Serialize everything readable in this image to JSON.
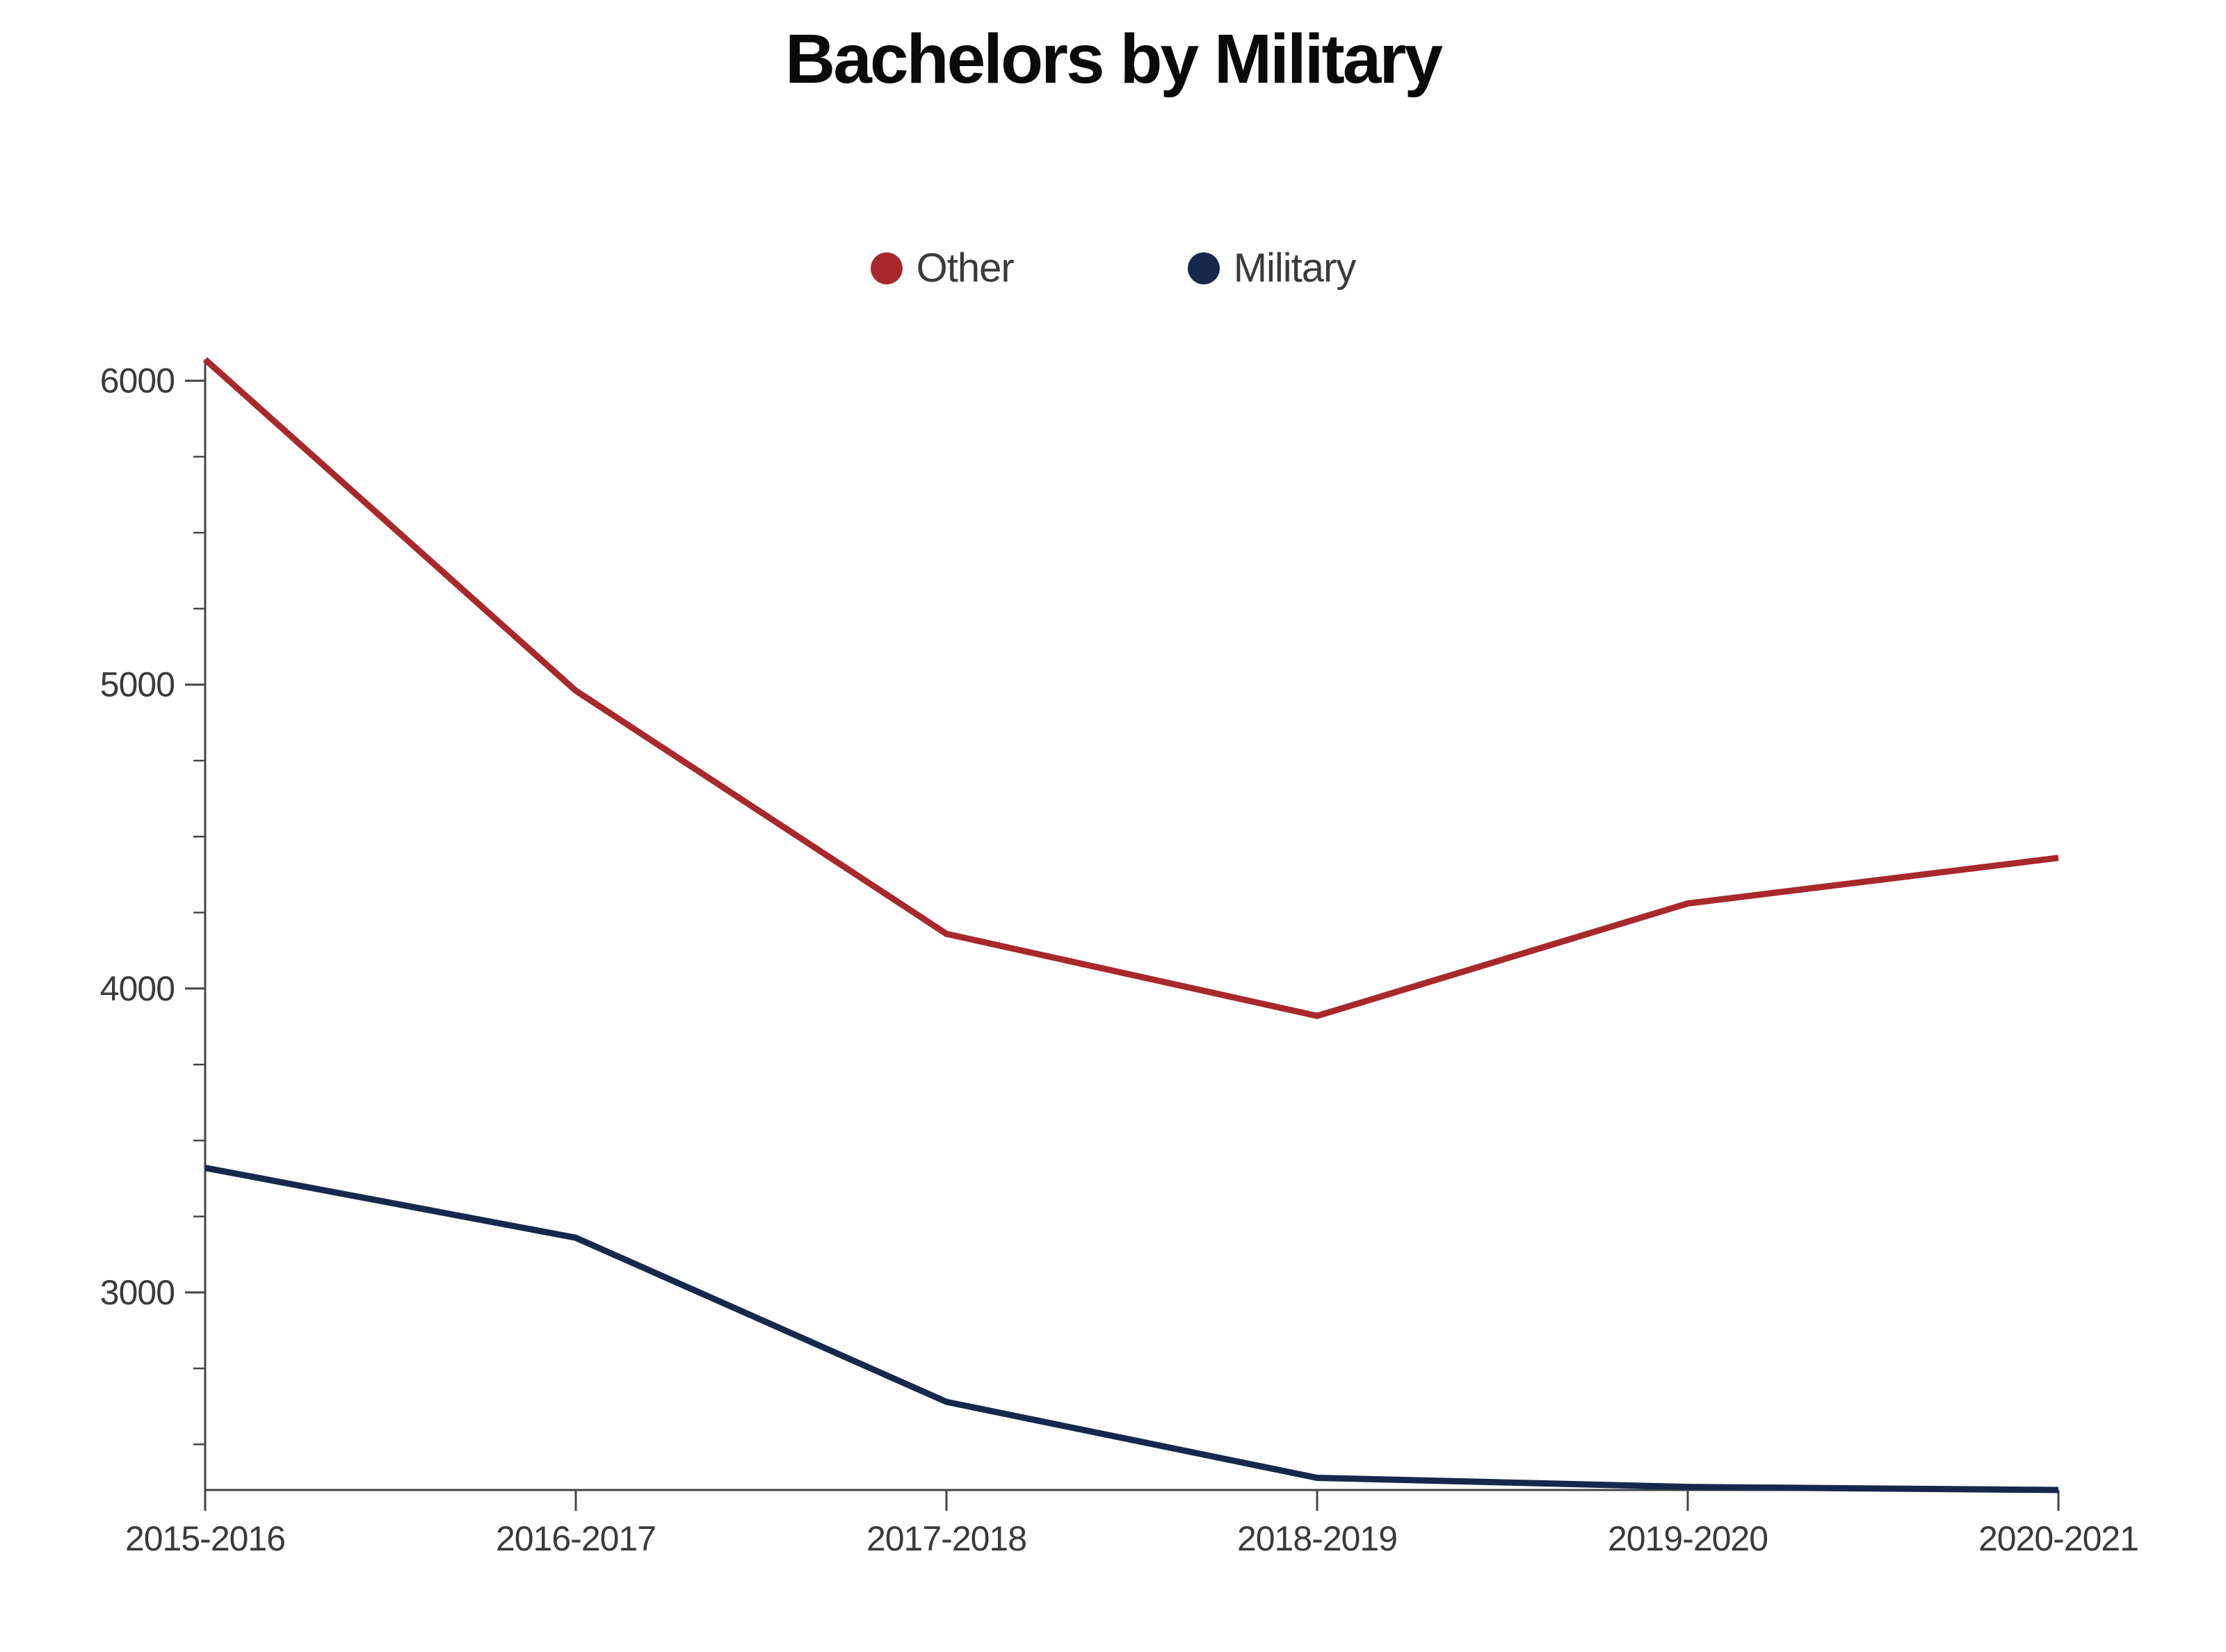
{
  "page": {
    "background_color": "#ffffff"
  },
  "chart_data": {
    "type": "line",
    "title": "Bachelors by Military",
    "categories": [
      "2015-2016",
      "2016-2017",
      "2017-2018",
      "2018-2019",
      "2019-2020",
      "2020-2021"
    ],
    "series": [
      {
        "name": "Other",
        "color": "#A8282C",
        "values": [
          6070,
          4980,
          4180,
          3910,
          4280,
          4430
        ]
      },
      {
        "name": "Military",
        "color": "#16294C",
        "values": [
          3410,
          3180,
          2640,
          2390,
          2360,
          2350
        ]
      }
    ],
    "xlabel": "",
    "ylabel": "",
    "ylim": [
      2350,
      6070
    ],
    "y_major_ticks": [
      3000,
      4000,
      5000,
      6000
    ],
    "y_major_tick_labels": [
      "3000",
      "4000",
      "5000",
      "6000"
    ],
    "y_minor_tick_step": 250,
    "grid": false,
    "legend_position": "top-center",
    "axis_color": "#454545",
    "label_color": "#3a3a3a",
    "title_color": "#0a0a0a"
  }
}
